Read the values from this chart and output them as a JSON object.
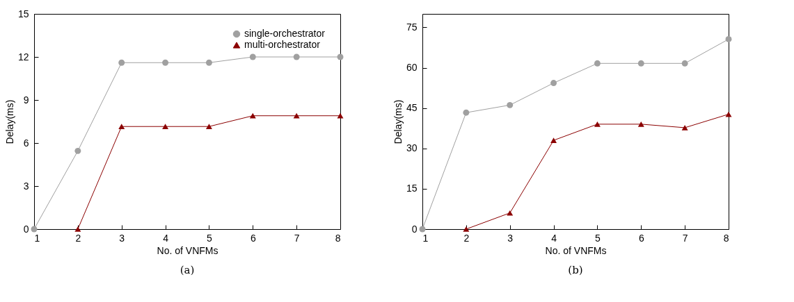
{
  "chart_data": [
    {
      "type": "line",
      "title": "(a)",
      "xlabel": "No. of VNFMs",
      "ylabel": "Delay(ms)",
      "x": [
        1,
        2,
        3,
        4,
        5,
        6,
        7,
        8
      ],
      "xlim": [
        1,
        8
      ],
      "xticks": [
        1,
        2,
        3,
        4,
        5,
        6,
        7,
        8
      ],
      "ylim": [
        0,
        15
      ],
      "yticks": [
        0,
        3,
        6,
        9,
        12,
        15
      ],
      "grid": false,
      "legend": "top right",
      "series": [
        {
          "name": "single-orchestrator",
          "color": "#a0a0a0",
          "marker": "circle",
          "values": [
            0,
            5.45,
            11.6,
            11.6,
            11.6,
            12,
            12,
            12
          ]
        },
        {
          "name": "multi-orchestrator",
          "color": "#8b0000",
          "marker": "triangle",
          "values": [
            null,
            0,
            7.15,
            7.15,
            7.15,
            7.9,
            7.9,
            7.9
          ]
        }
      ]
    },
    {
      "type": "line",
      "title": "(b)",
      "xlabel": "No. of VNFMs",
      "ylabel": "Delay(ms)",
      "x": [
        1,
        2,
        3,
        4,
        5,
        6,
        7,
        8
      ],
      "xlim": [
        1,
        8
      ],
      "xticks": [
        1,
        2,
        3,
        4,
        5,
        6,
        7,
        8
      ],
      "ylim": [
        0,
        80
      ],
      "yticks": [
        0,
        15,
        30,
        45,
        60,
        75
      ],
      "grid": false,
      "series": [
        {
          "color": "#a0a0a0",
          "marker": "circle",
          "values": [
            0,
            43.3,
            46.1,
            54.3,
            61.6,
            61.6,
            61.6,
            70.6
          ]
        },
        {
          "color": "#8b0000",
          "marker": "triangle",
          "values": [
            null,
            0,
            6,
            33,
            39,
            39,
            37.7,
            42.7
          ]
        }
      ]
    }
  ]
}
